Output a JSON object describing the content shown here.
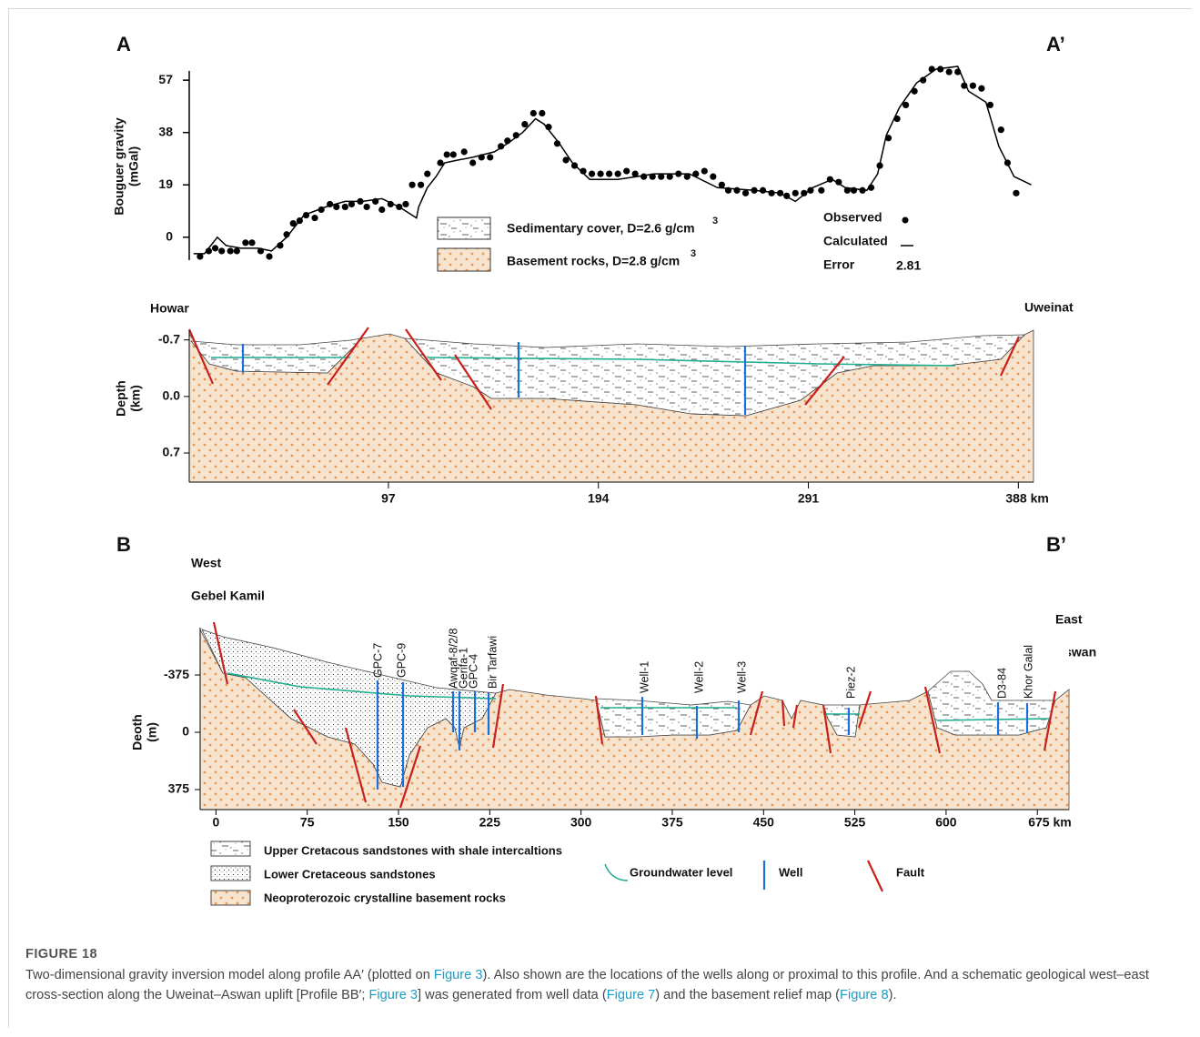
{
  "figure": {
    "panel_a": {
      "label": "A",
      "end_label": "A’",
      "gravity": {
        "type": "scatter-line",
        "y_label": [
          "Bouguer gravity",
          "(mGal)"
        ],
        "ylim": [
          -8,
          62
        ],
        "yticks": [
          0,
          19,
          38,
          57
        ],
        "observed": {
          "name": "Observed",
          "color": "#000000",
          "x": [
            10,
            14,
            17,
            20,
            24,
            27,
            31,
            34,
            38,
            42,
            47,
            50,
            53,
            56,
            59,
            63,
            66,
            70,
            73,
            77,
            80,
            84,
            87,
            91,
            94,
            98,
            102,
            105,
            108,
            112,
            115,
            121,
            124,
            127,
            132,
            136,
            140,
            144,
            149,
            152,
            156,
            160,
            164,
            168,
            171,
            175,
            179,
            183,
            187,
            191,
            195,
            199,
            203,
            207,
            211,
            215,
            219,
            223,
            227,
            231,
            235,
            239,
            243,
            247,
            251,
            254,
            258,
            262,
            266,
            270,
            274,
            278,
            281,
            285,
            289,
            292,
            297,
            301,
            305,
            309,
            312,
            316,
            320,
            324,
            328,
            332,
            336,
            340,
            344,
            348,
            352,
            356,
            360,
            363,
            367,
            371,
            375,
            380,
            383,
            387
          ],
          "values": [
            -7,
            -5,
            -4,
            -5,
            -5,
            -5,
            -2,
            -2,
            -5,
            -7,
            -3,
            1,
            5,
            6,
            8,
            7,
            10,
            12,
            11,
            11,
            12,
            13,
            11,
            13,
            10,
            12,
            11,
            12,
            19,
            19,
            23,
            27,
            30,
            30,
            31,
            27,
            29,
            29,
            33,
            35,
            37,
            41,
            45,
            45,
            40,
            34,
            28,
            26,
            24,
            23,
            23,
            23,
            23,
            24,
            23,
            22,
            22,
            22,
            22,
            23,
            22,
            23,
            24,
            22,
            19,
            17,
            17,
            16,
            17,
            17,
            16,
            16,
            15,
            16,
            16,
            17,
            17,
            21,
            20,
            17,
            17,
            17,
            18,
            26,
            36,
            43,
            48,
            53,
            57,
            61,
            61,
            60,
            60,
            55,
            55,
            54,
            48,
            39,
            27,
            16
          ]
        },
        "calculated": {
          "name": "Calculated",
          "color": "#000000",
          "x": [
            7,
            12,
            18,
            22,
            29,
            37,
            43,
            50,
            58,
            68,
            77,
            85,
            94,
            102,
            106,
            110,
            111,
            115,
            119,
            123,
            129,
            136,
            146,
            152,
            159,
            165,
            169,
            176,
            182,
            190,
            203,
            220,
            236,
            249,
            266,
            278,
            285,
            293,
            302,
            308,
            318,
            323,
            327,
            333,
            341,
            350,
            360,
            365,
            373,
            379,
            386,
            394
          ],
          "values": [
            -6,
            -6,
            0,
            -3,
            -4,
            -4,
            -5,
            0,
            8,
            11,
            13,
            13,
            14,
            11,
            9,
            7,
            11,
            18,
            22,
            27,
            28,
            29,
            31,
            34,
            38,
            43,
            41,
            34,
            27,
            21,
            21,
            23,
            23,
            18,
            17,
            16,
            13,
            18,
            21,
            18,
            17,
            23,
            37,
            47,
            56,
            61,
            62,
            53,
            49,
            33,
            22,
            19
          ]
        },
        "error": {
          "name": "Error",
          "value": 2.81
        }
      },
      "legend": {
        "sediment": {
          "text": "Sedimentary cover, D=2.6 g/cm",
          "sup": "3"
        },
        "basement": {
          "text": "Basement rocks, D=2.8 g/cm",
          "sup": "3"
        }
      },
      "section": {
        "left_label": "Howar",
        "right_label": "Uweinat",
        "y_label": [
          "Depth",
          "(km)"
        ],
        "xlim": [
          5,
          395
        ],
        "xticks": [
          97,
          194,
          291,
          {
            "value": 388,
            "label": "388 km"
          }
        ],
        "ylim": [
          -0.82,
          1.06
        ],
        "yticks": [
          -0.7,
          {
            "value": 0,
            "label": "0.0"
          },
          0.7
        ]
      }
    },
    "panel_b": {
      "label": "B",
      "end_label": "B’",
      "west": "West",
      "west_place": "Gebel Kamil",
      "east": "East",
      "east_place": "Aswan",
      "y_label": [
        "Deoth",
        "(m)"
      ],
      "xlim": [
        -13,
        701
      ],
      "xticks": [
        0,
        75,
        150,
        225,
        300,
        375,
        450,
        525,
        600,
        {
          "value": 675,
          "label": "675 km"
        }
      ],
      "ylim": [
        -685,
        506
      ],
      "yticks": [
        -375,
        0,
        375
      ],
      "wells": [
        "GPC-7",
        "GPC-9",
        "Awqaf-8/2/8",
        "Gerifa-1",
        "GPC-4",
        "Bir Tarfawi",
        "Well-1",
        "Well-2",
        "Well-3",
        "Piez-2",
        "D3-84",
        "Khor Galal"
      ],
      "legend": {
        "upper": "Upper Cretacous sandstones with shale intercaltions",
        "lower": "Lower Cretaceous sandstones",
        "basement": "Neoproterozoic crystalline basement rocks",
        "groundwater": "Groundwater level",
        "well": "Well",
        "fault": "Fault"
      }
    },
    "caption": {
      "title": "FIGURE 18",
      "parts": [
        {
          "text": "Two-dimensional gravity inversion model along profile AA′ (plotted on ",
          "link": false
        },
        {
          "text": "Figure 3",
          "link": true
        },
        {
          "text": "). Also shown are the locations of the wells along or proximal to this profile. And a schematic geological west–east cross-section along the Uweinat–Aswan uplift [Profile BB′; ",
          "link": false
        },
        {
          "text": "Figure 3",
          "link": true
        },
        {
          "text": "] was generated from well data (",
          "link": false
        },
        {
          "text": "Figure 7",
          "link": true
        },
        {
          "text": ") and the basement relief map (",
          "link": false
        },
        {
          "text": "Figure 8",
          "link": true
        },
        {
          "text": ").",
          "link": false
        }
      ]
    }
  }
}
